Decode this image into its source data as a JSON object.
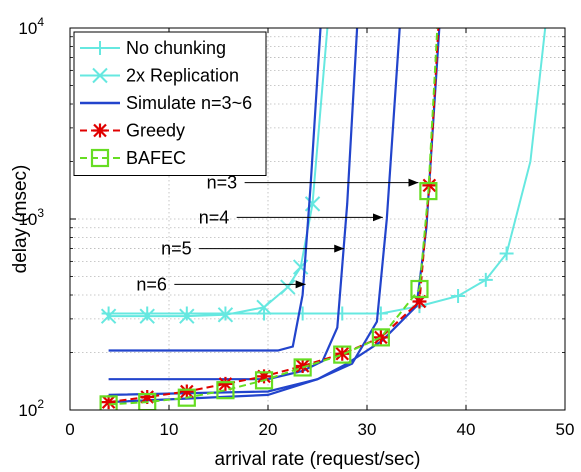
{
  "chart_data": {
    "type": "line",
    "xlabel": "arrival rate (request/sec)",
    "ylabel": "delay (msec)",
    "xlim": [
      0,
      50
    ],
    "ylim": [
      100,
      10000
    ],
    "yscale": "log",
    "grid": true,
    "legend_position": "top-left",
    "x_ticks": [
      "0",
      "10",
      "20",
      "30",
      "40",
      "50"
    ],
    "y_ticks": [
      {
        "value": 100,
        "base": "10",
        "exp": "2"
      },
      {
        "value": 1000,
        "base": "10",
        "exp": "3"
      },
      {
        "value": 10000,
        "base": "10",
        "exp": "4"
      }
    ],
    "series": [
      {
        "name": "No chunking",
        "color": "#66e8e0",
        "marker": "plus",
        "line": "solid",
        "points": [
          [
            3.9,
            320
          ],
          [
            7.8,
            320
          ],
          [
            11.8,
            320
          ],
          [
            15.7,
            320
          ],
          [
            19.6,
            320
          ],
          [
            23.5,
            320
          ],
          [
            27.5,
            320
          ],
          [
            31.4,
            320
          ],
          [
            35.3,
            350
          ],
          [
            39.2,
            395
          ],
          [
            42,
            480
          ],
          [
            44.1,
            660
          ],
          [
            46.5,
            2000
          ],
          [
            48,
            10000
          ]
        ]
      },
      {
        "name": "2x Replication",
        "color": "#66e8e0",
        "marker": "x",
        "line": "solid",
        "points": [
          [
            3.9,
            310
          ],
          [
            7.8,
            310
          ],
          [
            11.8,
            310
          ],
          [
            15.7,
            315
          ],
          [
            19.6,
            345
          ],
          [
            22,
            440
          ],
          [
            23.3,
            560
          ],
          [
            24.5,
            1200
          ],
          [
            25.5,
            5000
          ],
          [
            26,
            10000
          ]
        ]
      },
      {
        "name": "Simulate n=3~6",
        "color": "#2244cc",
        "marker": "none",
        "line": "solid",
        "points": [
          [
            3.9,
            205
          ],
          [
            21,
            205
          ],
          [
            22.5,
            215
          ],
          [
            23.5,
            400
          ],
          [
            24.3,
            1500
          ],
          [
            25.3,
            10000
          ]
        ]
      },
      {
        "name": "",
        "color": "#2244cc",
        "marker": "none",
        "line": "solid",
        "points": [
          [
            3.9,
            145
          ],
          [
            20,
            145
          ],
          [
            23.5,
            160
          ],
          [
            25.5,
            180
          ],
          [
            27,
            270
          ],
          [
            28,
            1200
          ],
          [
            29,
            10000
          ]
        ]
      },
      {
        "name": "",
        "color": "#2244cc",
        "marker": "none",
        "line": "solid",
        "points": [
          [
            3.9,
            120
          ],
          [
            20,
            125
          ],
          [
            25,
            145
          ],
          [
            28.5,
            175
          ],
          [
            31,
            290
          ],
          [
            32,
            1000
          ],
          [
            33.3,
            10000
          ]
        ]
      },
      {
        "name": "",
        "color": "#2244cc",
        "marker": "none",
        "line": "solid",
        "points": [
          [
            3.9,
            110
          ],
          [
            20,
            120
          ],
          [
            25,
            145
          ],
          [
            28,
            175
          ],
          [
            31.5,
            230
          ],
          [
            35,
            350
          ],
          [
            36,
            900
          ],
          [
            37.3,
            10000
          ]
        ]
      },
      {
        "name": "Greedy",
        "color": "#e00000",
        "marker": "asterisk",
        "line": "dashed",
        "points": [
          [
            3.9,
            110
          ],
          [
            7.8,
            117
          ],
          [
            11.8,
            125
          ],
          [
            15.7,
            137
          ],
          [
            19.6,
            150
          ],
          [
            23.5,
            170
          ],
          [
            27.5,
            197
          ],
          [
            31.4,
            240
          ],
          [
            35.3,
            370
          ],
          [
            36.3,
            1500
          ],
          [
            37.2,
            10000
          ]
        ]
      },
      {
        "name": "BAFEC",
        "color": "#66dd22",
        "marker": "square",
        "line": "dashed",
        "points": [
          [
            3.9,
            107
          ],
          [
            7.8,
            110
          ],
          [
            11.8,
            116
          ],
          [
            15.7,
            127
          ],
          [
            19.6,
            143
          ],
          [
            23.5,
            167
          ],
          [
            27.5,
            195
          ],
          [
            31.4,
            240
          ],
          [
            35.3,
            430
          ],
          [
            36.2,
            1400
          ],
          [
            37.1,
            10000
          ]
        ]
      }
    ],
    "annotations": [
      {
        "text": "n=3",
        "x_text": 13.8,
        "y": 1550,
        "x_arrow_end": 35.2
      },
      {
        "text": "n=4",
        "x_text": 13.0,
        "y": 1020,
        "x_arrow_end": 31.6
      },
      {
        "text": "n=5",
        "x_text": 9.2,
        "y": 700,
        "x_arrow_end": 27.7
      },
      {
        "text": "n=6",
        "x_text": 6.7,
        "y": 455,
        "x_arrow_end": 23.8
      }
    ]
  }
}
